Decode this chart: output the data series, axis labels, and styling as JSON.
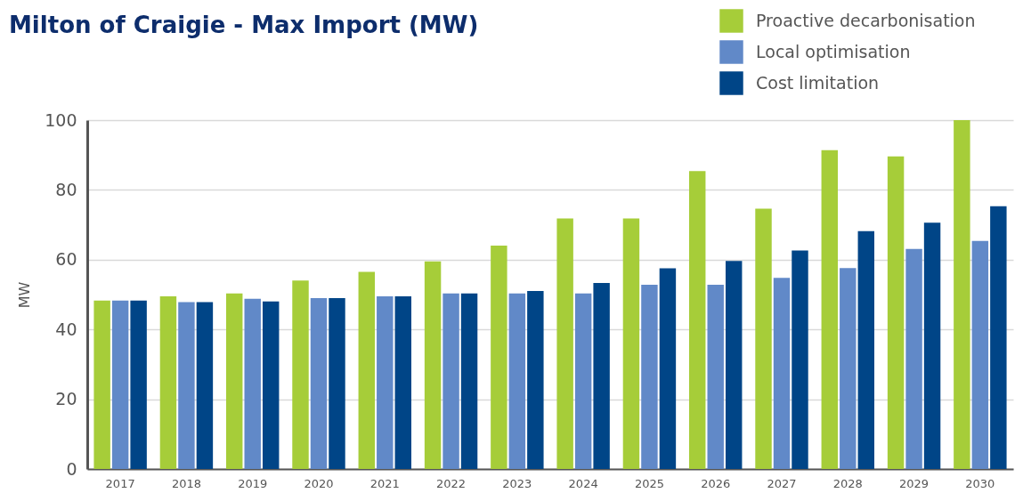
{
  "chart_data": {
    "type": "bar",
    "title": "Milton of Craigie - Max Import (MW)",
    "ylabel": "MW",
    "categories": [
      "2017",
      "2018",
      "2019",
      "2020",
      "2021",
      "2022",
      "2023",
      "2024",
      "2025",
      "2026",
      "2027",
      "2028",
      "2029",
      "2030"
    ],
    "series": [
      {
        "name": "Proactive decarbonisation",
        "color": "#a6cd39",
        "values": [
          48.3,
          49.5,
          50.3,
          54.0,
          56.5,
          59.5,
          64.0,
          71.8,
          71.8,
          85.4,
          74.6,
          91.4,
          89.6,
          100
        ]
      },
      {
        "name": "Local optimisation",
        "color": "#6189c8",
        "values": [
          48.3,
          47.8,
          48.8,
          49.0,
          49.5,
          50.3,
          50.3,
          50.3,
          52.8,
          52.8,
          54.8,
          57.6,
          63.1,
          65.4
        ]
      },
      {
        "name": "Cost limitation",
        "color": "#004587",
        "values": [
          48.3,
          47.8,
          48.0,
          49.0,
          49.5,
          50.3,
          51.0,
          53.3,
          57.5,
          59.6,
          62.6,
          68.2,
          70.6,
          75.3
        ]
      }
    ],
    "ylim": [
      0,
      100
    ],
    "yticks": [
      0,
      20,
      40,
      60,
      80,
      100
    ],
    "grid": "y",
    "legend": "top right"
  }
}
